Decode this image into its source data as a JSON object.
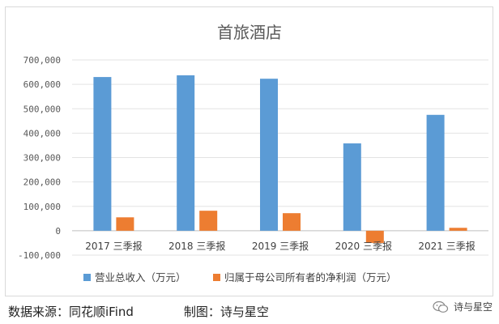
{
  "chart_data": {
    "type": "bar",
    "title": "首旅酒店",
    "categories": [
      "2017 三季报",
      "2018 三季报",
      "2019 三季报",
      "2020 三季报",
      "2021 三季报"
    ],
    "series": [
      {
        "name": "营业总收入（万元）",
        "color": "#5b9bd5",
        "values": [
          630000,
          637000,
          623000,
          358000,
          475000
        ]
      },
      {
        "name": "归属于母公司所有者的净利润（万元）",
        "color": "#ed7d31",
        "values": [
          55000,
          82000,
          72000,
          -50000,
          12000
        ]
      }
    ],
    "ylim": [
      -100000,
      700000
    ],
    "yticks": [
      -100000,
      0,
      100000,
      200000,
      300000,
      400000,
      500000,
      600000,
      700000
    ],
    "ytick_labels": [
      "-100,000",
      "0",
      "100,000",
      "200,000",
      "300,000",
      "400,000",
      "500,000",
      "600,000",
      "700,000"
    ],
    "grid": true,
    "legend_position": "bottom"
  },
  "footer": {
    "source": "数据来源：同花顺iFind",
    "credit": "制图：诗与星空"
  },
  "watermark": {
    "text": "诗与星空",
    "icon": "wechat-icon"
  }
}
